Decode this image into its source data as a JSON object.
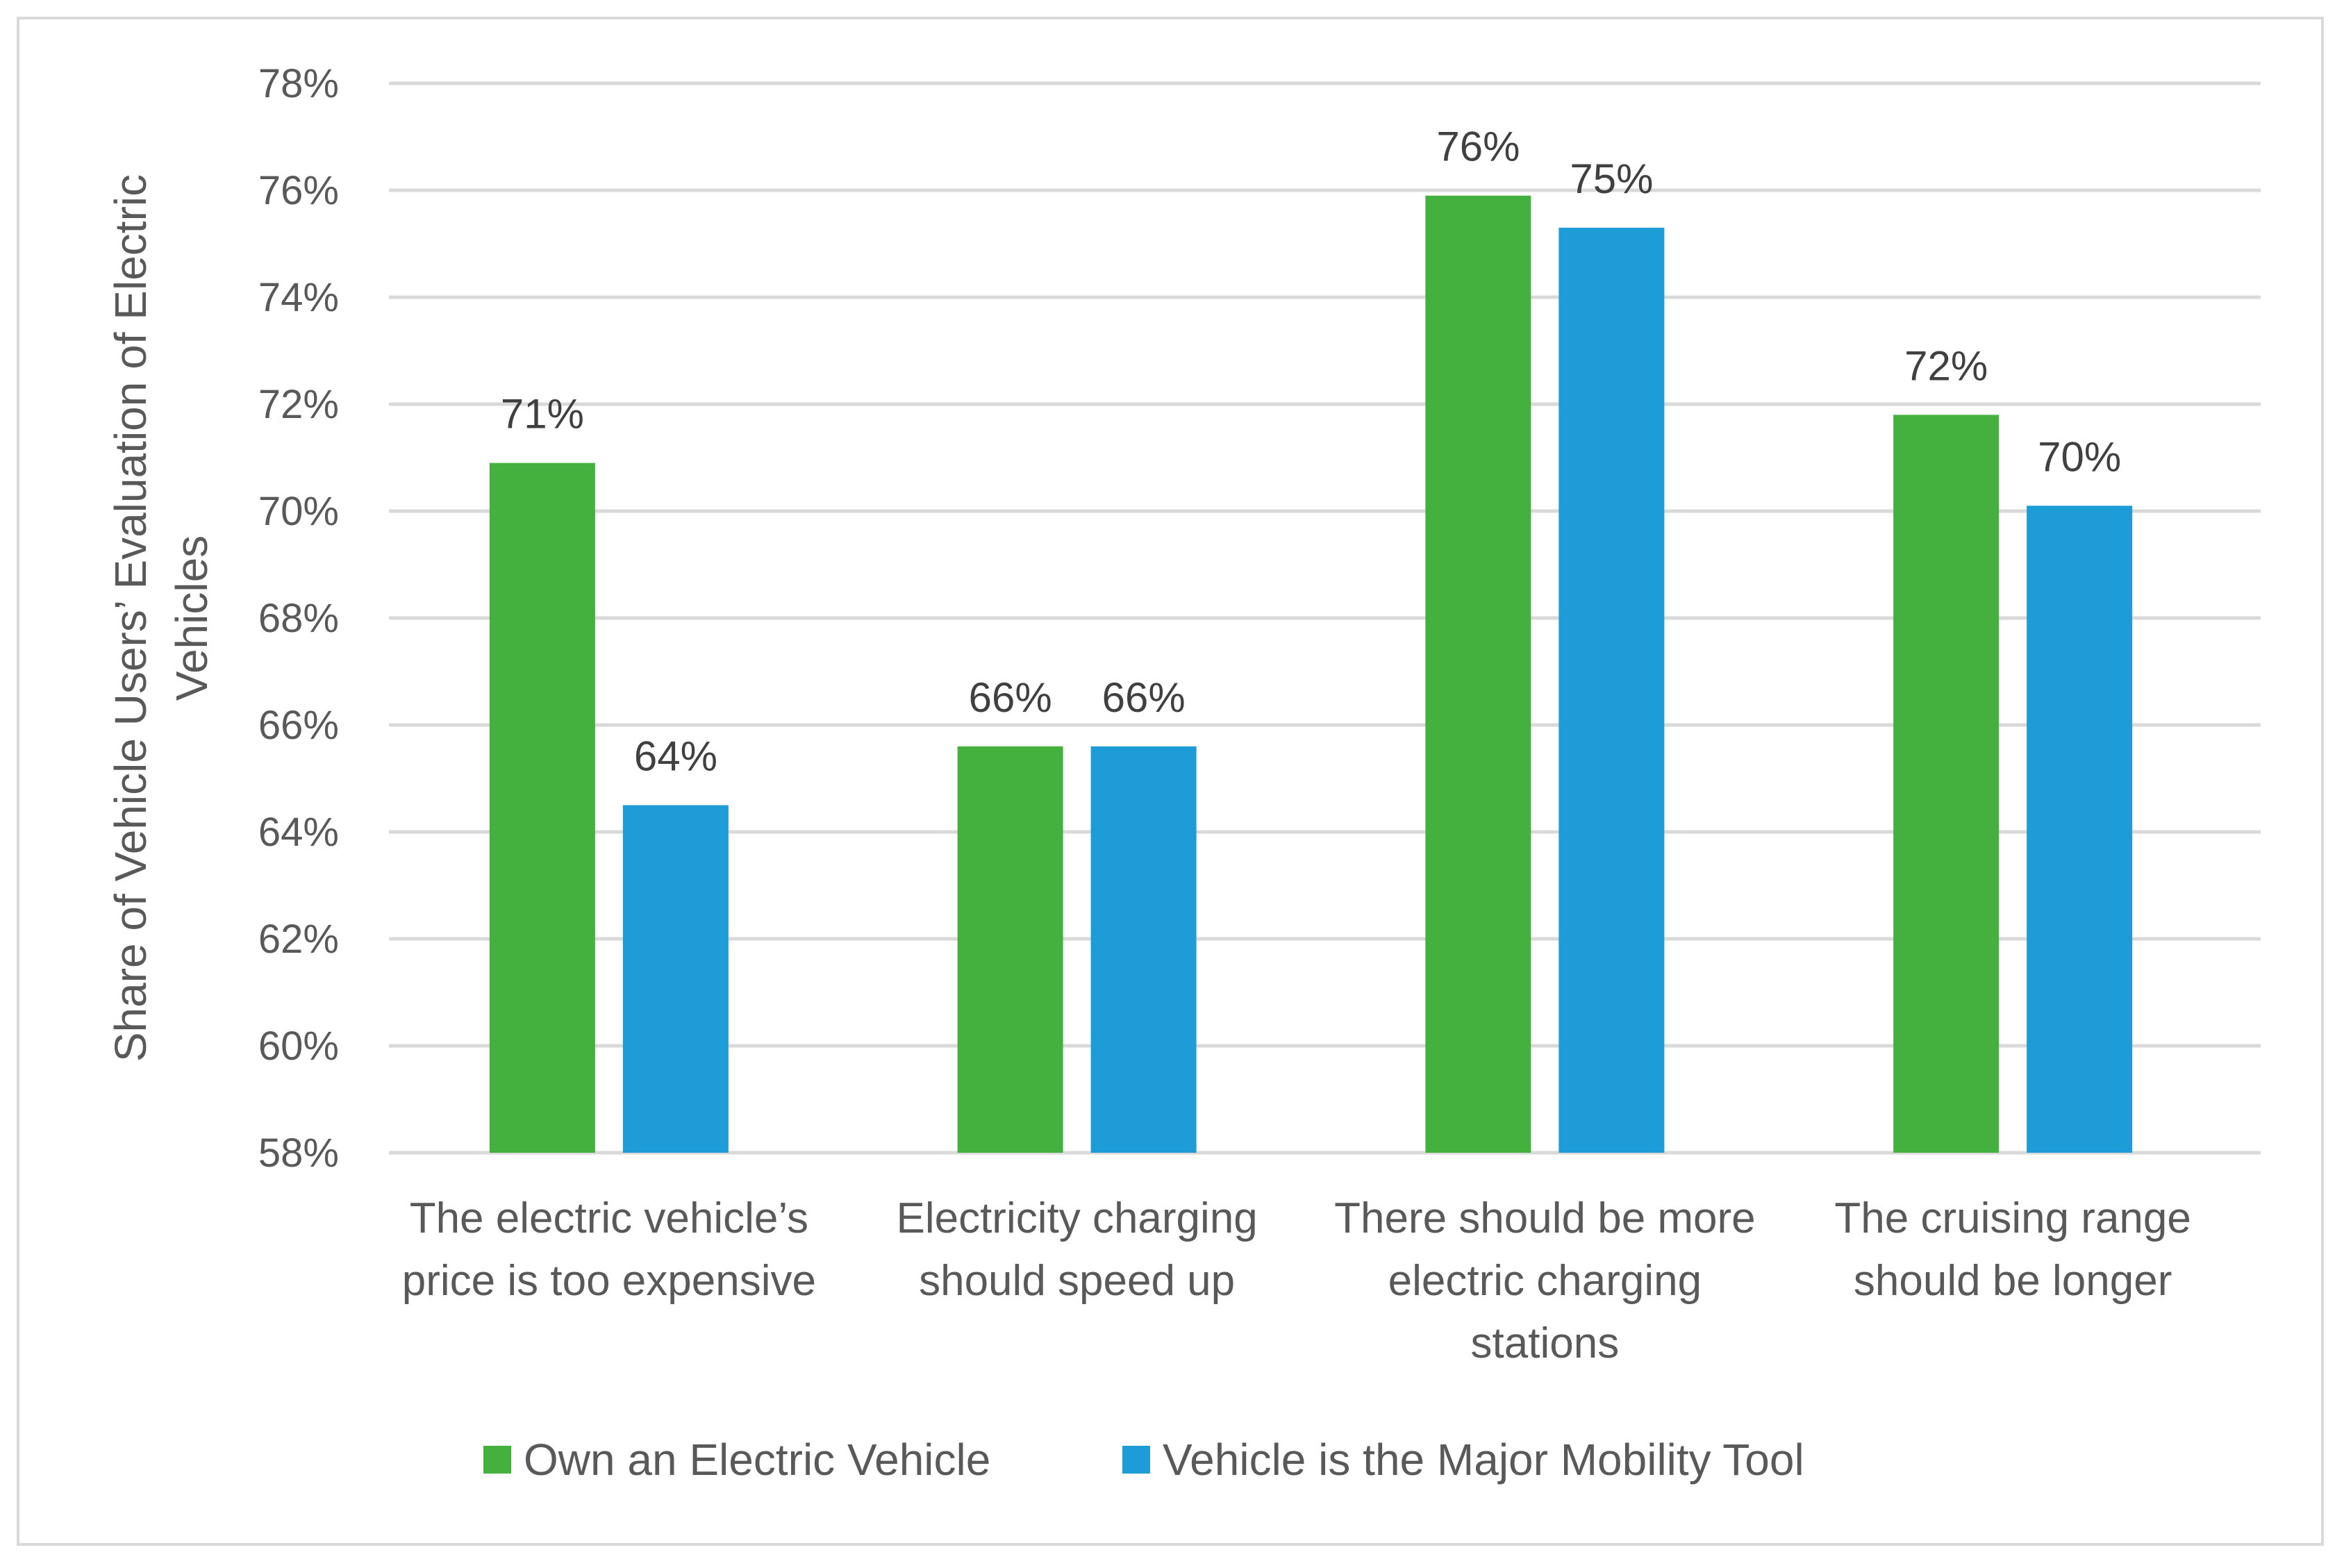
{
  "chart_data": {
    "type": "bar",
    "title": "",
    "xlabel": "",
    "ylabel": "Share of Vehicle Users’ Evaluation of Electric Vehicles",
    "ylabel_lines": [
      "Share of Vehicle Users’ Evaluation of Electric",
      "Vehicles"
    ],
    "ylim": [
      58,
      78
    ],
    "yticks": [
      58,
      60,
      62,
      64,
      66,
      68,
      70,
      72,
      74,
      76,
      78
    ],
    "ytick_labels": [
      "58%",
      "60%",
      "62%",
      "64%",
      "66%",
      "68%",
      "70%",
      "72%",
      "74%",
      "76%",
      "78%"
    ],
    "grid": true,
    "legend_position": "bottom",
    "categories": [
      "The electric vehicle’s price is too expensive",
      "Electricity charging should speed up",
      "There should be more electric charging stations",
      "The cruising range should be longer"
    ],
    "category_lines": [
      [
        "The electric vehicle’s",
        "price is too expensive"
      ],
      [
        "Electricity charging",
        "should speed up"
      ],
      [
        "There should be more",
        "electric charging",
        "stations"
      ],
      [
        "The cruising range",
        "should be longer"
      ]
    ],
    "series": [
      {
        "name": "Own an Electric Vehicle",
        "color": "#44b13f",
        "values": [
          70.9,
          65.6,
          75.9,
          71.8
        ],
        "labels": [
          "71%",
          "66%",
          "76%",
          "72%"
        ]
      },
      {
        "name": "Vehicle is the Major Mobility Tool",
        "color": "#1e9cd7",
        "values": [
          64.5,
          65.6,
          75.3,
          70.1
        ],
        "labels": [
          "64%",
          "66%",
          "75%",
          "70%"
        ]
      }
    ]
  }
}
